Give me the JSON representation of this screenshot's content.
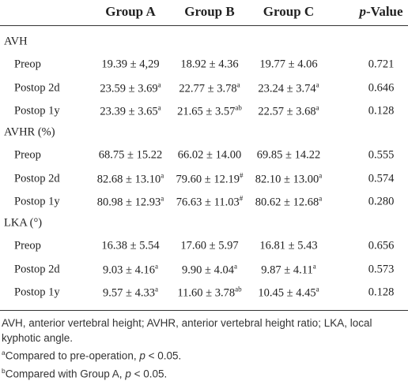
{
  "table": {
    "header": {
      "groups": [
        "Group A",
        "Group B",
        "Group C"
      ],
      "p_value": {
        "italic": "p",
        "rest": "-Value"
      }
    },
    "sections": [
      {
        "title": "AVH",
        "rows": [
          {
            "label": "Preop",
            "cells": [
              {
                "text": "19.39 ± 4,29"
              },
              {
                "text": "18.92 ± 4.36"
              },
              {
                "text": "19.77 ± 4.06"
              }
            ],
            "p": "0.721"
          },
          {
            "label": "Postop 2d",
            "cells": [
              {
                "text": "23.59 ± 3.69",
                "sup": "a"
              },
              {
                "text": "22.77 ± 3.78",
                "sup": "a"
              },
              {
                "text": "23.24 ± 3.74",
                "sup": "a"
              }
            ],
            "p": "0.646"
          },
          {
            "label": "Postop 1y",
            "cells": [
              {
                "text": "23.39 ± 3.65",
                "sup": "a"
              },
              {
                "text": "21.65 ± 3.57",
                "sup": "ab"
              },
              {
                "text": "22.57 ± 3.68",
                "sup": "a"
              }
            ],
            "p": "0.128"
          }
        ]
      },
      {
        "title": "AVHR (%)",
        "rows": [
          {
            "label": "Preop",
            "cells": [
              {
                "text": "68.75 ± 15.22"
              },
              {
                "text": "66.02 ± 14.00"
              },
              {
                "text": "69.85 ± 14.22"
              }
            ],
            "p": "0.555"
          },
          {
            "label": "Postop 2d",
            "cells": [
              {
                "text": "82.68 ± 13.10",
                "sup": "a"
              },
              {
                "text": "79.60 ± 12.19",
                "sup": "#"
              },
              {
                "text": "82.10 ± 13.00",
                "sup": "a"
              }
            ],
            "p": "0.574"
          },
          {
            "label": "Postop 1y",
            "cells": [
              {
                "text": "80.98 ± 12.93",
                "sup": "a"
              },
              {
                "text": "76.63 ± 11.03",
                "sup": "#"
              },
              {
                "text": "80.62 ± 12.68",
                "sup": "a"
              }
            ],
            "p": "0.280"
          }
        ]
      },
      {
        "title": "LKA (°)",
        "rows": [
          {
            "label": "Preop",
            "cells": [
              {
                "text": "16.38 ± 5.54"
              },
              {
                "text": "17.60 ± 5.97"
              },
              {
                "text": "16.81 ± 5.43"
              }
            ],
            "p": "0.656"
          },
          {
            "label": "Postop 2d",
            "cells": [
              {
                "text": "9.03 ± 4.16",
                "sup": "a"
              },
              {
                "text": "9.90 ± 4.04",
                "sup": "a"
              },
              {
                "text": "9.87 ± 4.11",
                "sup": "a"
              }
            ],
            "p": "0.573"
          },
          {
            "label": "Postop 1y",
            "cells": [
              {
                "text": "9.57 ± 4.33",
                "sup": "a"
              },
              {
                "text": "11.60 ± 3.78",
                "sup": "ab"
              },
              {
                "text": "10.45 ± 4.45",
                "sup": "a"
              }
            ],
            "p": "0.128"
          }
        ]
      }
    ]
  },
  "footnotes": {
    "abbreviations": "AVH, anterior vertebral height; AVHR, anterior vertebral height ratio; LKA, local kyphotic angle.",
    "notes": [
      {
        "mark": "a",
        "text": "Compared to pre-operation, ",
        "italic": "p",
        "tail": " < 0.05."
      },
      {
        "mark": "b",
        "text": "Compared with Group A, ",
        "italic": "p",
        "tail": " < 0.05."
      }
    ]
  }
}
